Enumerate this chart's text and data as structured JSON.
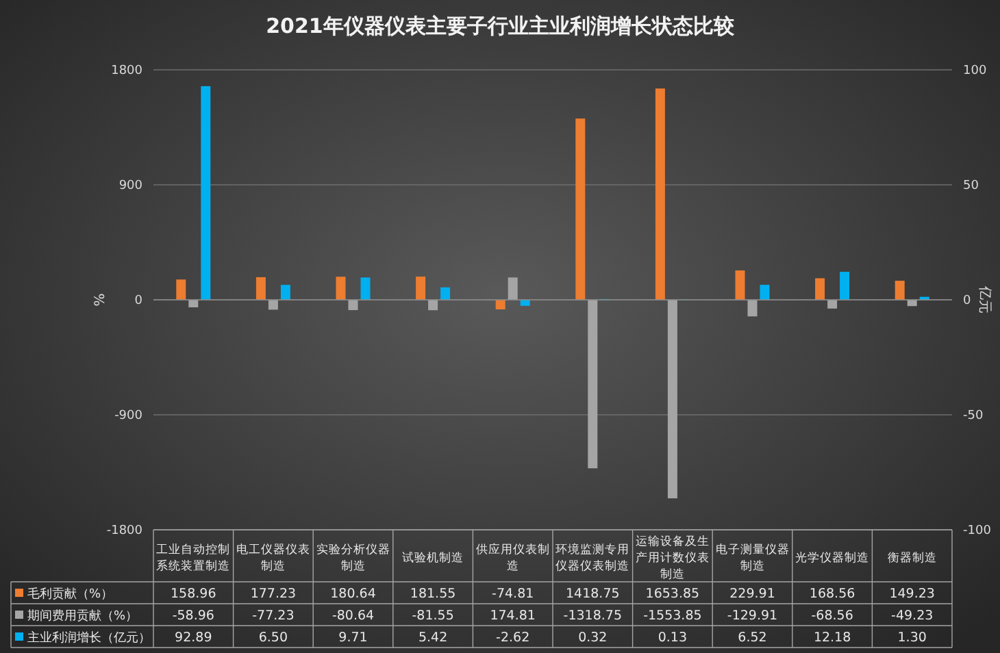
{
  "chart_data": {
    "type": "bar",
    "title": "2021年仪器仪表主要子行业主业利润增长状态比较",
    "ylabel": "%",
    "y2label": "亿元",
    "categories": [
      "工业自动控制系统装置制造",
      "电工仪器仪表制造",
      "实验分析仪器制造",
      "试验机制造",
      "供应用仪表制造",
      "环境监测专用仪器仪表制造",
      "运输设备及生产用计数仪表制造",
      "电子测量仪器制造",
      "光学仪器制造",
      "衡器制造"
    ],
    "series": [
      {
        "name": "毛利贡献（%）",
        "color": "#ed7d31",
        "values": [
          158.96,
          177.23,
          180.64,
          181.55,
          -74.81,
          1418.75,
          1653.85,
          229.91,
          168.56,
          149.23
        ],
        "value_labels": [
          "158.96",
          "177.23",
          "180.64",
          "181.55",
          "-74.81",
          "1418.75",
          "1653.85",
          "229.91",
          "168.56",
          "149.23"
        ]
      },
      {
        "name": "期间费用贡献（%）",
        "color": "#a5a5a5",
        "values": [
          -58.96,
          -77.23,
          -80.64,
          -81.55,
          174.81,
          -1318.75,
          -1553.85,
          -129.91,
          -68.56,
          -49.23
        ],
        "value_labels": [
          "-58.96",
          "-77.23",
          "-80.64",
          "-81.55",
          "174.81",
          "-1318.75",
          "-1553.85",
          "-129.91",
          "-68.56",
          "-49.23"
        ]
      },
      {
        "name": "主业利润增长（亿元）",
        "color": "#00b0f0",
        "axis": "y2",
        "values": [
          92.89,
          6.5,
          9.71,
          5.42,
          -2.62,
          0.32,
          0.13,
          6.52,
          12.18,
          1.3
        ],
        "value_labels": [
          "92.89",
          "6.50",
          "9.71",
          "5.42",
          "-2.62",
          "0.32",
          "0.13",
          "6.52",
          "12.18",
          "1.30"
        ]
      }
    ],
    "ylim": [
      -1800,
      1800
    ],
    "yticks": [
      -1800,
      -900,
      0,
      900,
      1800
    ],
    "y2lim": [
      -100,
      100
    ],
    "y2ticks": [
      -100,
      -50,
      0,
      50,
      100
    ],
    "grid": true,
    "legend": "bottom"
  }
}
